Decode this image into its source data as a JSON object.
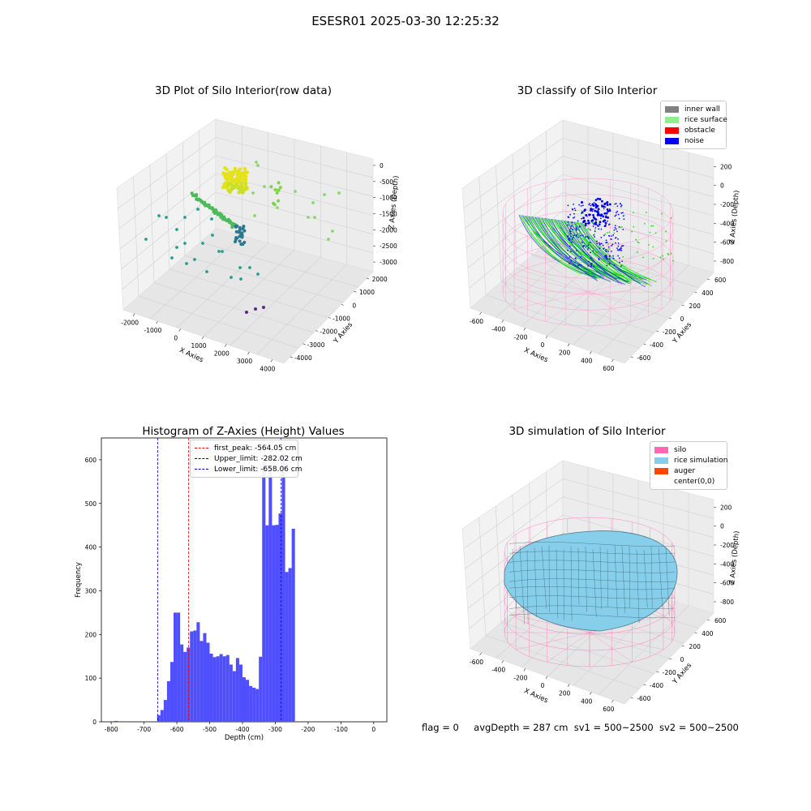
{
  "header": {
    "title": "ESESR01 2025-03-30 12:25:32"
  },
  "panels": {
    "raw": {
      "title": "3D Plot of Silo Interior(row data)",
      "xlabel": "X Axies",
      "ylabel": "Y Axies",
      "zlabel": "Z Axies (Depth)",
      "xticks": [
        "-2000",
        "-1000",
        "0",
        "1000",
        "2000",
        "3000",
        "4000"
      ],
      "yticks": [
        "2000",
        "1000",
        "0",
        "-1000",
        "-2000",
        "-3000",
        "-4000"
      ],
      "zticks": [
        "0",
        "-500",
        "-1000",
        "-1500",
        "-2000",
        "-2500",
        "-3000"
      ]
    },
    "classify": {
      "title": "3D classify of Silo Interior",
      "xlabel": "X Axies",
      "ylabel": "Y Axies",
      "zlabel": "Z Axies (Depth)",
      "xticks": [
        "-600",
        "-400",
        "-200",
        "0",
        "200",
        "400",
        "600"
      ],
      "yticks": [
        "600",
        "400",
        "200",
        "0",
        "-200",
        "-400",
        "-600"
      ],
      "zticks": [
        "200",
        "0",
        "-200",
        "-400",
        "-600",
        "-800"
      ],
      "legend": [
        {
          "label": "inner wall",
          "color": "#808080"
        },
        {
          "label": "rice surface",
          "color": "#90ee90"
        },
        {
          "label": "obstacle",
          "color": "#ff0000"
        },
        {
          "label": "noise",
          "color": "#0000ee"
        }
      ]
    },
    "sim": {
      "title": "3D simulation of Silo Interior",
      "xlabel": "X Axies",
      "ylabel": "Y Axies",
      "zlabel": "Z Axies (Depth)",
      "xticks": [
        "-600",
        "-400",
        "-200",
        "0",
        "200",
        "400",
        "600"
      ],
      "yticks": [
        "600",
        "400",
        "200",
        "0",
        "-200",
        "-400",
        "-600"
      ],
      "zticks": [
        "200",
        "0",
        "-200",
        "-400",
        "-600",
        "-800"
      ],
      "legend": [
        {
          "label": "silo",
          "color": "#ff69b4"
        },
        {
          "label": "rice simulation",
          "color": "#87ceeb"
        },
        {
          "label": "auger",
          "color": "#ff4500"
        },
        {
          "label": "center(0,0)",
          "color": "transparent"
        }
      ]
    }
  },
  "colors": {
    "hist_bar": "#4f4fff",
    "first_peak": "#ff0000",
    "limits": "#0000cc",
    "rice_surface": "#00ee00",
    "noise": "#0000ee",
    "silo_wire": "#ff69b4",
    "rice_sim": "#87ceeb"
  },
  "chart_data": [
    {
      "type": "scatter",
      "panel": "raw",
      "title": "3D Plot of Silo Interior(row data)",
      "xlabel": "X Axies",
      "ylabel": "Y Axies",
      "zlabel": "Z Axies (Depth)",
      "xlim": [
        -2500,
        4500
      ],
      "ylim": [
        -4500,
        2500
      ],
      "zlim": [
        -3200,
        200
      ],
      "colormap": "viridis by depth"
    },
    {
      "type": "scatter",
      "panel": "classify",
      "title": "3D classify of Silo Interior",
      "xlabel": "X Axies",
      "ylabel": "Y Axies",
      "zlabel": "Z Axies (Depth)",
      "xlim": [
        -650,
        650
      ],
      "ylim": [
        -650,
        650
      ],
      "zlim": [
        -900,
        300
      ],
      "series": [
        {
          "name": "inner wall"
        },
        {
          "name": "rice surface"
        },
        {
          "name": "obstacle"
        },
        {
          "name": "noise"
        }
      ]
    },
    {
      "type": "bar",
      "panel": "histogram",
      "title": "Histogram of Z-Axies (Height) Values",
      "xlabel": "Depth (cm)",
      "ylabel": "Frequency",
      "xlim": [
        -830,
        40
      ],
      "ylim": [
        0,
        650
      ],
      "bin_width": 10,
      "xticks": [
        -800,
        -700,
        -600,
        -500,
        -400,
        -300,
        -200,
        -100,
        0
      ],
      "yticks": [
        0,
        100,
        200,
        300,
        400,
        500,
        600
      ],
      "bins": [
        {
          "x0": -790,
          "x1": -780,
          "count": 2
        },
        {
          "x0": -660,
          "x1": -650,
          "count": 15
        },
        {
          "x0": -650,
          "x1": -640,
          "count": 27
        },
        {
          "x0": -640,
          "x1": -630,
          "count": 50
        },
        {
          "x0": -630,
          "x1": -620,
          "count": 93
        },
        {
          "x0": -620,
          "x1": -610,
          "count": 137
        },
        {
          "x0": -610,
          "x1": -600,
          "count": 250
        },
        {
          "x0": -600,
          "x1": -590,
          "count": 250
        },
        {
          "x0": -590,
          "x1": -580,
          "count": 177
        },
        {
          "x0": -580,
          "x1": -570,
          "count": 160
        },
        {
          "x0": -570,
          "x1": -560,
          "count": 170
        },
        {
          "x0": -560,
          "x1": -550,
          "count": 207
        },
        {
          "x0": -550,
          "x1": -540,
          "count": 209
        },
        {
          "x0": -540,
          "x1": -530,
          "count": 228
        },
        {
          "x0": -530,
          "x1": -520,
          "count": 185
        },
        {
          "x0": -520,
          "x1": -510,
          "count": 203
        },
        {
          "x0": -510,
          "x1": -500,
          "count": 181
        },
        {
          "x0": -500,
          "x1": -490,
          "count": 156
        },
        {
          "x0": -490,
          "x1": -480,
          "count": 148
        },
        {
          "x0": -480,
          "x1": -470,
          "count": 150
        },
        {
          "x0": -470,
          "x1": -460,
          "count": 155
        },
        {
          "x0": -460,
          "x1": -450,
          "count": 150
        },
        {
          "x0": -450,
          "x1": -440,
          "count": 153
        },
        {
          "x0": -440,
          "x1": -430,
          "count": 131
        },
        {
          "x0": -430,
          "x1": -420,
          "count": 116
        },
        {
          "x0": -420,
          "x1": -410,
          "count": 146
        },
        {
          "x0": -410,
          "x1": -400,
          "count": 131
        },
        {
          "x0": -400,
          "x1": -390,
          "count": 102
        },
        {
          "x0": -390,
          "x1": -380,
          "count": 96
        },
        {
          "x0": -380,
          "x1": -370,
          "count": 82
        },
        {
          "x0": -370,
          "x1": -360,
          "count": 78
        },
        {
          "x0": -360,
          "x1": -350,
          "count": 75
        },
        {
          "x0": -350,
          "x1": -340,
          "count": 149
        },
        {
          "x0": -340,
          "x1": -330,
          "count": 598
        },
        {
          "x0": -330,
          "x1": -320,
          "count": 450
        },
        {
          "x0": -320,
          "x1": -310,
          "count": 583
        },
        {
          "x0": -310,
          "x1": -300,
          "count": 450
        },
        {
          "x0": -300,
          "x1": -290,
          "count": 451
        },
        {
          "x0": -290,
          "x1": -280,
          "count": 477
        },
        {
          "x0": -280,
          "x1": -270,
          "count": 615
        },
        {
          "x0": -270,
          "x1": -260,
          "count": 343
        },
        {
          "x0": -260,
          "x1": -250,
          "count": 352
        },
        {
          "x0": -250,
          "x1": -240,
          "count": 442
        }
      ],
      "vlines": [
        {
          "name": "first_peak: -564.05 cm",
          "x": -564.05,
          "color": "#ff0000"
        },
        {
          "name": "Upper_limit: -282.02 cm",
          "x": -282.02,
          "color": "#0000cc"
        },
        {
          "name": "Lower_limit: -658.06 cm",
          "x": -658.06,
          "color": "#0000cc"
        }
      ],
      "legend_position": "top-center"
    },
    {
      "type": "area",
      "panel": "sim",
      "title": "3D simulation of Silo Interior",
      "xlabel": "X Axies",
      "ylabel": "Y Axies",
      "zlabel": "Z Axies (Depth)",
      "xlim": [
        -650,
        650
      ],
      "ylim": [
        -650,
        650
      ],
      "zlim": [
        -900,
        300
      ],
      "series": [
        {
          "name": "silo"
        },
        {
          "name": "rice simulation"
        },
        {
          "name": "auger"
        },
        {
          "name": "center(0,0)"
        }
      ]
    }
  ],
  "status": {
    "flag": "flag = 0",
    "avg_depth": "avgDepth = 287 cm",
    "sv1": "sv1 = 500~2500",
    "sv2": "sv2 = 500~2500"
  }
}
